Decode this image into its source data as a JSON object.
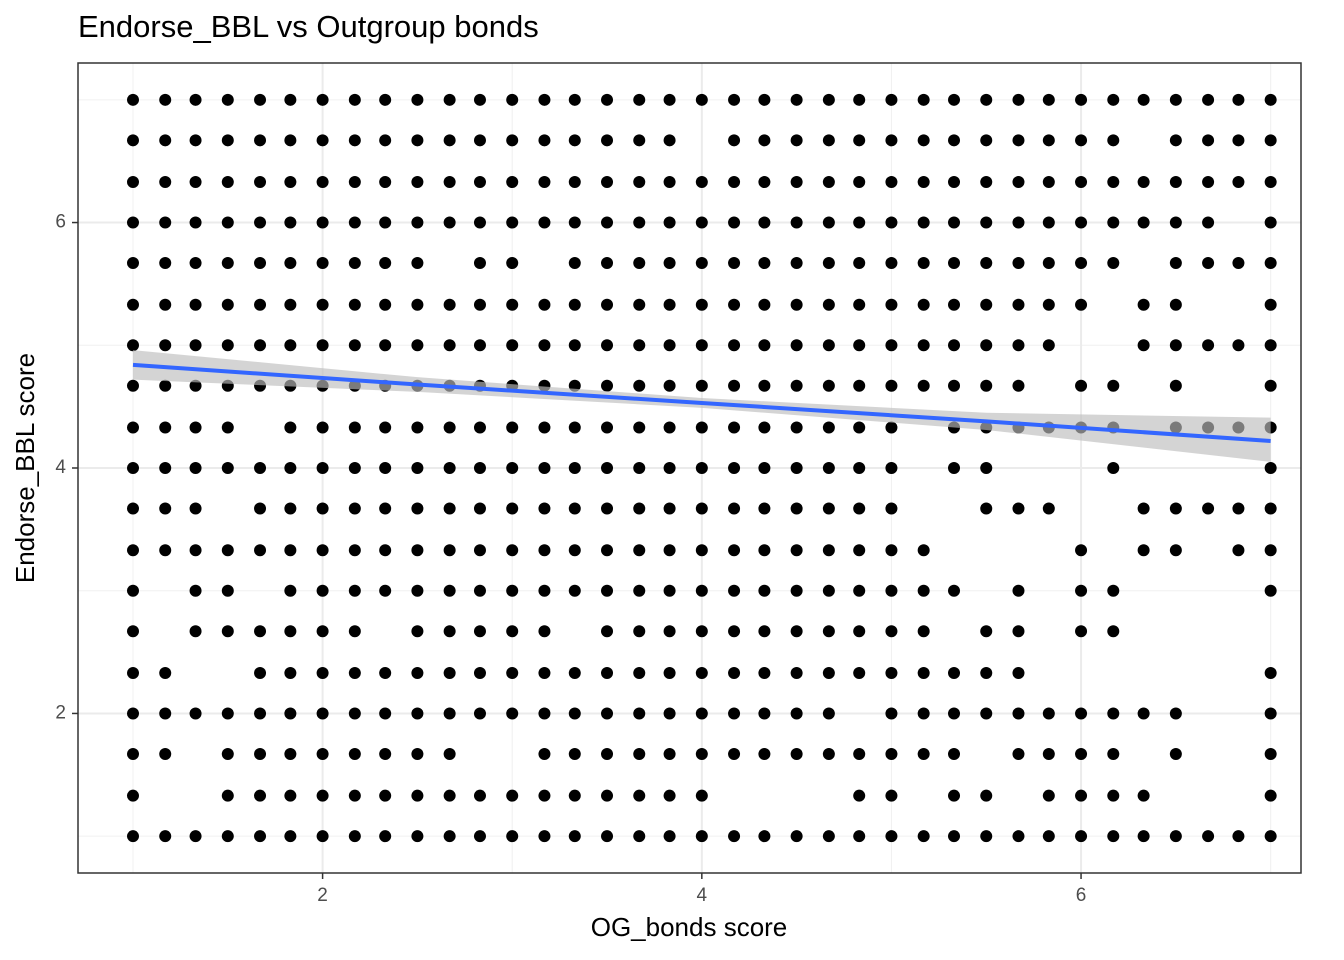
{
  "chart_data": {
    "type": "scatter",
    "title": "Endorse_BBL vs Outgroup bonds",
    "x_label": "OG_bonds score",
    "y_label": "Endorse_BBL score",
    "xlim": [
      0.71,
      7.16
    ],
    "ylim": [
      0.7,
      7.3
    ],
    "xticks": [
      2,
      4,
      6
    ],
    "yticks": [
      2,
      4,
      6
    ],
    "x_minor_grid": [
      1,
      3,
      5,
      7
    ],
    "y_minor_grid": [
      1,
      3,
      5,
      7
    ],
    "grid": true,
    "point_color": "#000000",
    "rows": [
      {
        "y": 7,
        "x": [
          1,
          1.17,
          1.33,
          1.5,
          1.67,
          1.83,
          2,
          2.17,
          2.33,
          2.5,
          2.67,
          2.83,
          3,
          3.17,
          3.33,
          3.5,
          3.67,
          3.83,
          4,
          4.17,
          4.33,
          4.5,
          4.67,
          4.83,
          5,
          5.17,
          5.33,
          5.5,
          5.67,
          5.83,
          6,
          6.17,
          6.33,
          6.5,
          6.67,
          6.83,
          7
        ]
      },
      {
        "y": 6.67,
        "x": [
          1,
          1.17,
          1.33,
          1.5,
          1.67,
          1.83,
          2,
          2.17,
          2.33,
          2.5,
          2.67,
          2.83,
          3,
          3.17,
          3.33,
          3.5,
          3.67,
          3.83,
          4.17,
          4.33,
          4.5,
          4.67,
          4.83,
          5,
          5.17,
          5.33,
          5.5,
          5.67,
          5.83,
          6,
          6.17,
          6.5,
          6.67,
          6.83,
          7
        ]
      },
      {
        "y": 6.33,
        "x": [
          1,
          1.17,
          1.33,
          1.5,
          1.67,
          1.83,
          2,
          2.17,
          2.33,
          2.5,
          2.67,
          2.83,
          3,
          3.17,
          3.33,
          3.5,
          3.67,
          3.83,
          4,
          4.17,
          4.33,
          4.5,
          4.67,
          4.83,
          5,
          5.17,
          5.33,
          5.5,
          5.67,
          5.83,
          6,
          6.17,
          6.33,
          6.5,
          6.67,
          6.83,
          7
        ]
      },
      {
        "y": 6,
        "x": [
          1,
          1.17,
          1.33,
          1.5,
          1.67,
          1.83,
          2,
          2.17,
          2.33,
          2.5,
          2.67,
          2.83,
          3,
          3.17,
          3.33,
          3.5,
          3.67,
          3.83,
          4,
          4.17,
          4.33,
          4.5,
          4.67,
          4.83,
          5,
          5.17,
          5.33,
          5.5,
          5.67,
          5.83,
          6,
          6.17,
          6.33,
          6.5,
          6.67,
          7
        ]
      },
      {
        "y": 5.67,
        "x": [
          1,
          1.17,
          1.33,
          1.5,
          1.67,
          1.83,
          2,
          2.17,
          2.33,
          2.5,
          2.83,
          3,
          3.33,
          3.5,
          3.67,
          3.83,
          4,
          4.17,
          4.33,
          4.5,
          4.67,
          4.83,
          5,
          5.17,
          5.33,
          5.5,
          5.67,
          5.83,
          6,
          6.17,
          6.5,
          6.67,
          6.83,
          7
        ]
      },
      {
        "y": 5.33,
        "x": [
          1,
          1.17,
          1.33,
          1.5,
          1.67,
          1.83,
          2,
          2.17,
          2.33,
          2.5,
          2.67,
          2.83,
          3,
          3.17,
          3.33,
          3.5,
          3.67,
          3.83,
          4,
          4.17,
          4.33,
          4.5,
          4.67,
          4.83,
          5,
          5.17,
          5.33,
          5.5,
          5.67,
          5.83,
          6,
          6.33,
          6.5,
          7
        ]
      },
      {
        "y": 5,
        "x": [
          1,
          1.17,
          1.33,
          1.5,
          1.67,
          1.83,
          2,
          2.17,
          2.33,
          2.5,
          2.67,
          2.83,
          3,
          3.17,
          3.33,
          3.5,
          3.67,
          3.83,
          4,
          4.17,
          4.33,
          4.5,
          4.67,
          4.83,
          5,
          5.17,
          5.33,
          5.5,
          5.67,
          5.83,
          6.33,
          6.5,
          6.67,
          6.83,
          7
        ]
      },
      {
        "y": 4.67,
        "x": [
          1,
          1.17,
          1.33,
          1.5,
          1.67,
          1.83,
          2,
          2.17,
          2.33,
          2.5,
          2.67,
          2.83,
          3,
          3.17,
          3.33,
          3.5,
          3.67,
          3.83,
          4,
          4.17,
          4.33,
          4.5,
          4.67,
          4.83,
          5,
          5.17,
          5.33,
          5.5,
          5.67,
          6,
          6.17,
          6.5,
          7
        ]
      },
      {
        "y": 4.33,
        "x": [
          1,
          1.17,
          1.33,
          1.5,
          1.83,
          2,
          2.17,
          2.33,
          2.5,
          2.67,
          2.83,
          3,
          3.17,
          3.33,
          3.5,
          3.67,
          3.83,
          4,
          4.17,
          4.33,
          4.5,
          4.67,
          4.83,
          5,
          5.33,
          5.5,
          5.67,
          5.83,
          6,
          6.17,
          6.5,
          6.67,
          6.83,
          7
        ]
      },
      {
        "y": 4,
        "x": [
          1,
          1.17,
          1.33,
          1.5,
          1.67,
          1.83,
          2,
          2.17,
          2.33,
          2.5,
          2.67,
          2.83,
          3,
          3.17,
          3.33,
          3.5,
          3.67,
          3.83,
          4,
          4.17,
          4.33,
          4.5,
          4.67,
          4.83,
          5,
          5.33,
          5.5,
          6.17,
          7
        ]
      },
      {
        "y": 3.67,
        "x": [
          1,
          1.17,
          1.33,
          1.67,
          1.83,
          2,
          2.17,
          2.33,
          2.5,
          2.67,
          2.83,
          3,
          3.17,
          3.33,
          3.5,
          3.67,
          3.83,
          4,
          4.17,
          4.33,
          4.5,
          4.67,
          4.83,
          5,
          5.5,
          5.67,
          5.83,
          6.33,
          6.5,
          6.67,
          6.83,
          7
        ]
      },
      {
        "y": 3.33,
        "x": [
          1,
          1.17,
          1.33,
          1.5,
          1.67,
          1.83,
          2,
          2.17,
          2.33,
          2.5,
          2.67,
          2.83,
          3,
          3.17,
          3.33,
          3.5,
          3.67,
          3.83,
          4,
          4.17,
          4.33,
          4.5,
          4.67,
          4.83,
          5,
          5.17,
          6,
          6.33,
          6.5,
          6.83,
          7
        ]
      },
      {
        "y": 3,
        "x": [
          1,
          1.33,
          1.5,
          1.83,
          2,
          2.17,
          2.33,
          2.5,
          2.67,
          2.83,
          3,
          3.17,
          3.33,
          3.5,
          3.67,
          3.83,
          4,
          4.17,
          4.33,
          4.5,
          4.67,
          4.83,
          5,
          5.17,
          5.33,
          5.67,
          6,
          6.17,
          7
        ]
      },
      {
        "y": 2.67,
        "x": [
          1,
          1.33,
          1.5,
          1.67,
          1.83,
          2,
          2.17,
          2.5,
          2.67,
          2.83,
          3,
          3.17,
          3.5,
          3.67,
          3.83,
          4,
          4.17,
          4.33,
          4.5,
          4.67,
          4.83,
          5,
          5.17,
          5.5,
          5.67,
          6,
          6.17
        ]
      },
      {
        "y": 2.33,
        "x": [
          1,
          1.17,
          1.67,
          1.83,
          2,
          2.17,
          2.33,
          2.5,
          2.67,
          2.83,
          3,
          3.17,
          3.33,
          3.5,
          3.67,
          3.83,
          4,
          4.17,
          4.33,
          4.5,
          4.67,
          4.83,
          5,
          5.17,
          5.33,
          5.5,
          5.67,
          7
        ]
      },
      {
        "y": 2,
        "x": [
          1,
          1.17,
          1.33,
          1.5,
          1.67,
          1.83,
          2,
          2.17,
          2.33,
          2.5,
          2.67,
          2.83,
          3,
          3.17,
          3.33,
          3.5,
          3.67,
          3.83,
          4,
          4.17,
          4.33,
          4.5,
          4.67,
          5,
          5.17,
          5.33,
          5.5,
          5.67,
          5.83,
          6,
          6.17,
          6.33,
          6.5,
          7
        ]
      },
      {
        "y": 1.67,
        "x": [
          1,
          1.17,
          1.5,
          1.67,
          1.83,
          2,
          2.17,
          2.33,
          2.5,
          2.67,
          3.17,
          3.33,
          3.5,
          3.67,
          3.83,
          4,
          4.17,
          4.33,
          4.5,
          4.67,
          4.83,
          5,
          5.17,
          5.33,
          5.67,
          5.83,
          6,
          6.17,
          6.5,
          7
        ]
      },
      {
        "y": 1.33,
        "x": [
          1,
          1.5,
          1.67,
          1.83,
          2,
          2.17,
          2.33,
          2.5,
          2.67,
          2.83,
          3,
          3.17,
          3.33,
          3.5,
          3.67,
          3.83,
          4,
          4.83,
          5,
          5.33,
          5.5,
          5.83,
          6,
          6.17,
          6.33,
          7
        ]
      },
      {
        "y": 1,
        "x": [
          1,
          1.17,
          1.33,
          1.5,
          1.67,
          1.83,
          2,
          2.17,
          2.33,
          2.5,
          2.67,
          2.83,
          3,
          3.17,
          3.33,
          3.5,
          3.67,
          3.83,
          4,
          4.17,
          4.33,
          4.5,
          4.67,
          4.83,
          5,
          5.17,
          5.33,
          5.5,
          5.67,
          5.83,
          6,
          6.17,
          6.33,
          6.5,
          6.67,
          6.83,
          7
        ]
      }
    ],
    "smooth": {
      "color": "#3366ff",
      "band_color": "#bdbdbd",
      "x": [
        1,
        2.5,
        4,
        5.5,
        7
      ],
      "y": [
        4.84,
        4.68,
        4.53,
        4.38,
        4.22
      ],
      "ci_lower": [
        4.72,
        4.62,
        4.49,
        4.31,
        4.05
      ],
      "ci_upper": [
        4.96,
        4.74,
        4.57,
        4.45,
        4.41
      ]
    }
  }
}
